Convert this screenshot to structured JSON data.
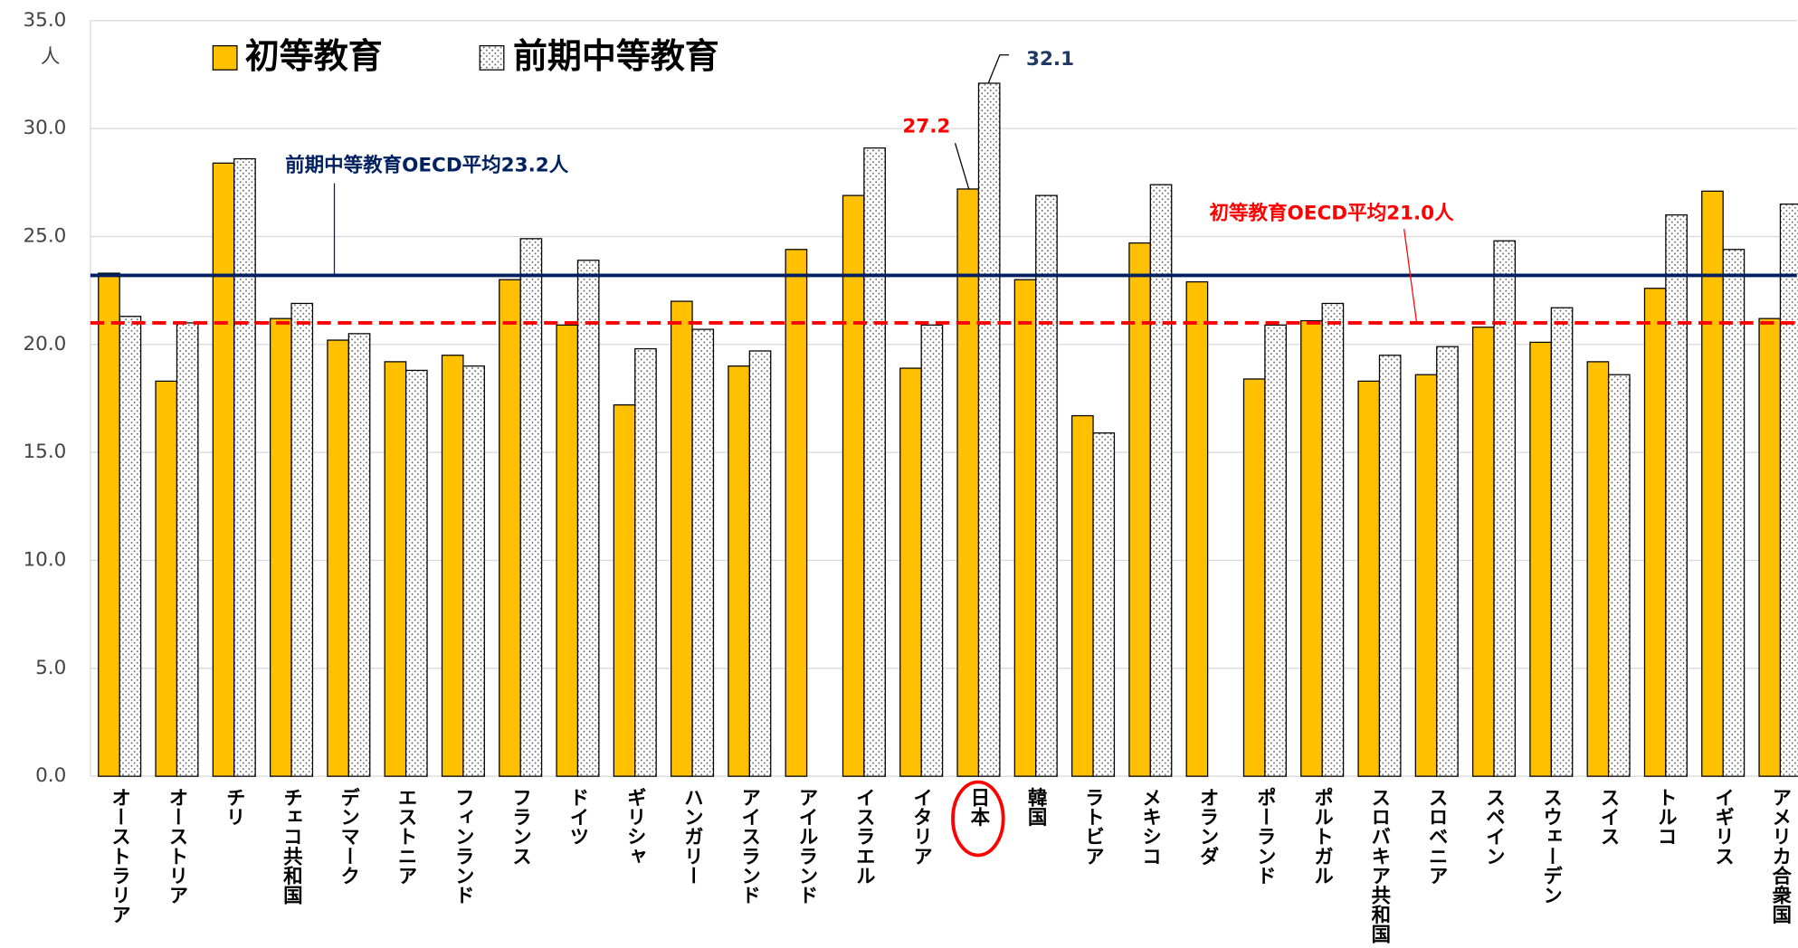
{
  "chart_data": {
    "type": "bar",
    "y_unit": "人",
    "categories": [
      "オーストラリア",
      "オーストリア",
      "チリ",
      "チェコ共和国",
      "デンマーク",
      "エストニア",
      "フィンランド",
      "フランス",
      "ドイツ",
      "ギリシャ",
      "ハンガリー",
      "アイスランド",
      "アイルランド",
      "イスラエル",
      "イタリア",
      "日本",
      "韓国",
      "ラトビア",
      "メキシコ",
      "オランダ",
      "ポーランド",
      "ポルトガル",
      "スロバキア共和国",
      "スロベニア",
      "スペイン",
      "スウェーデン",
      "スイス",
      "トルコ",
      "イギリス",
      "アメリカ合衆国"
    ],
    "series": [
      {
        "name": "初等教育",
        "color": "#FFC000",
        "values": [
          23.3,
          18.3,
          28.4,
          21.2,
          20.2,
          19.2,
          19.5,
          23.0,
          20.9,
          17.2,
          22.0,
          19.0,
          24.4,
          26.9,
          18.9,
          27.2,
          23.0,
          16.7,
          24.7,
          22.9,
          18.4,
          21.1,
          18.3,
          18.6,
          20.8,
          20.1,
          19.2,
          22.6,
          27.1,
          21.2
        ]
      },
      {
        "name": "前期中等教育",
        "color": "#FFFFFF",
        "pattern": "dots",
        "values": [
          21.3,
          21.0,
          28.6,
          21.9,
          20.5,
          18.8,
          19.0,
          24.9,
          23.9,
          19.8,
          20.7,
          19.7,
          null,
          29.1,
          20.9,
          32.1,
          26.9,
          15.9,
          27.4,
          null,
          20.9,
          21.9,
          19.5,
          19.9,
          24.8,
          21.7,
          18.6,
          26.0,
          24.4,
          26.5
        ]
      }
    ],
    "reference_lines": [
      {
        "label": "前期中等教育OECD平均23.2人",
        "value": 23.2,
        "color": "#002060",
        "style": "solid"
      },
      {
        "label": "初等教育OECD平均21.0人",
        "value": 21.0,
        "color": "#FF0000",
        "style": "dashed"
      }
    ],
    "highlight_category": 15,
    "ylim": [
      0,
      35
    ],
    "yticks": [
      {
        "value": 0,
        "label": "0.0"
      },
      {
        "value": 5,
        "label": "5.0"
      },
      {
        "value": 10,
        "label": "10.0"
      },
      {
        "value": 15,
        "label": "15.0"
      },
      {
        "value": 20,
        "label": "20.0"
      },
      {
        "value": 25,
        "label": "25.0"
      },
      {
        "value": 30,
        "label": "30.0"
      },
      {
        "value": 35,
        "label": "35.0"
      }
    ],
    "grid": true
  }
}
